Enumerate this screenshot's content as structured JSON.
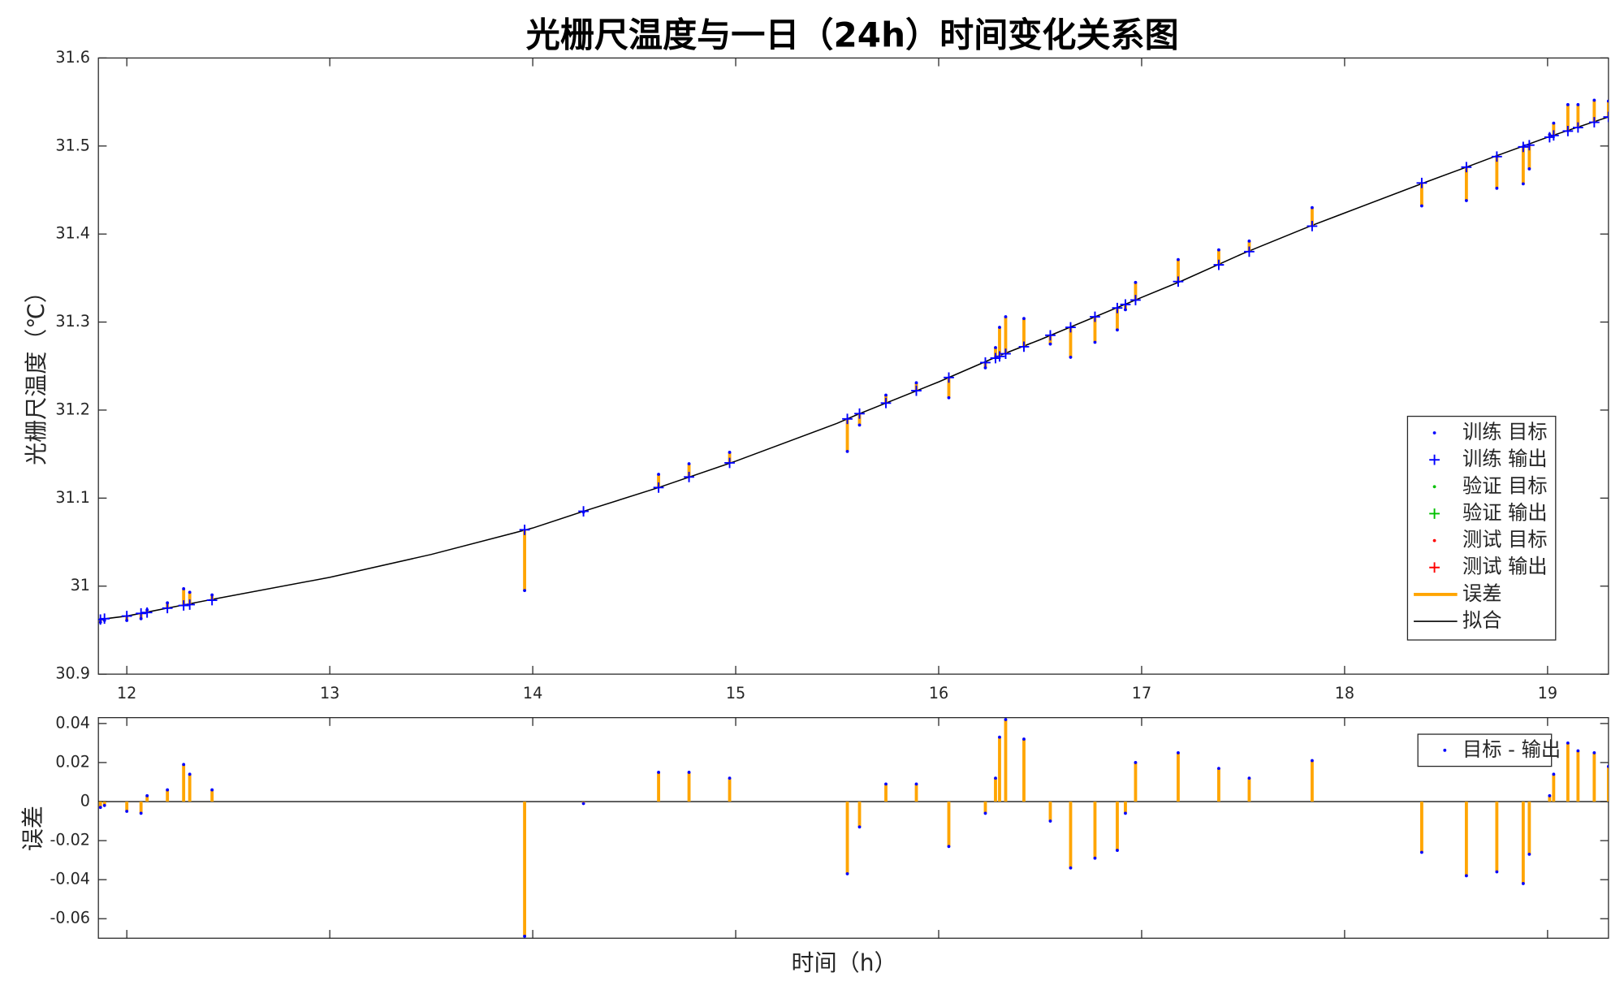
{
  "chart_data": [
    {
      "type": "line",
      "title": "光栅尺温度与一日（24h）时间变化关系图",
      "ylabel": "光栅尺温度（℃）",
      "xlim": [
        11.86,
        19.3
      ],
      "ylim": [
        30.9,
        31.6
      ],
      "xticks": [
        12,
        13,
        14,
        15,
        16,
        17,
        18,
        19
      ],
      "yticks": [
        30.9,
        31,
        31.1,
        31.2,
        31.3,
        31.4,
        31.5,
        31.6
      ],
      "x": [
        11.87,
        11.89,
        12.0,
        12.07,
        12.1,
        12.2,
        12.28,
        12.31,
        12.42,
        13.96,
        14.25,
        14.62,
        14.77,
        14.97,
        15.55,
        15.61,
        15.74,
        15.89,
        16.05,
        16.23,
        16.28,
        16.3,
        16.33,
        16.42,
        16.55,
        16.65,
        16.77,
        16.88,
        16.92,
        16.97,
        17.18,
        17.38,
        17.53,
        17.84,
        18.38,
        18.6,
        18.75,
        18.88,
        18.91,
        19.01,
        19.03,
        19.1,
        19.15,
        19.23,
        19.3
      ],
      "legend_position": "lower right",
      "series": [
        {
          "name": "训练 目标",
          "color": "#0000ff",
          "marker": "dot",
          "values": [
            30.959,
            30.961,
            30.961,
            30.963,
            30.973,
            30.981,
            30.997,
            30.993,
            30.99,
            30.995,
            31.084,
            31.127,
            31.139,
            31.152,
            31.153,
            31.183,
            31.217,
            31.231,
            31.214,
            31.248,
            31.271,
            31.294,
            31.306,
            31.304,
            31.275,
            31.26,
            31.277,
            31.291,
            31.314,
            31.345,
            31.371,
            31.382,
            31.392,
            31.43,
            31.432,
            31.438,
            31.452,
            31.457,
            31.474,
            31.513,
            31.526,
            31.547,
            31.547,
            31.552,
            31.551
          ]
        },
        {
          "name": "训练 输出",
          "color": "#0000ff",
          "marker": "plus",
          "values": [
            30.962,
            30.963,
            30.966,
            30.969,
            30.97,
            30.975,
            30.978,
            30.979,
            30.984,
            31.064,
            31.085,
            31.112,
            31.124,
            31.14,
            31.19,
            31.196,
            31.208,
            31.222,
            31.237,
            31.254,
            31.259,
            31.261,
            31.264,
            31.272,
            31.285,
            31.294,
            31.306,
            31.316,
            31.32,
            31.325,
            31.346,
            31.365,
            31.38,
            31.409,
            31.458,
            31.476,
            31.488,
            31.499,
            31.501,
            31.51,
            31.512,
            31.517,
            31.521,
            31.527,
            31.533
          ]
        },
        {
          "name": "验证 目标",
          "color": "#00c000",
          "marker": "dot"
        },
        {
          "name": "验证 输出",
          "color": "#00c000",
          "marker": "plus"
        },
        {
          "name": "测试 目标",
          "color": "#ff0000",
          "marker": "dot"
        },
        {
          "name": "测试 输出",
          "color": "#ff0000",
          "marker": "plus"
        },
        {
          "name": "误差",
          "color": "#ffa500",
          "marker": "errorbar"
        },
        {
          "name": "拟合",
          "color": "#000000",
          "marker": "line",
          "x": [
            11.86,
            12.0,
            12.4,
            13.0,
            13.5,
            14.0,
            14.25,
            14.62,
            15.0,
            15.5,
            15.6,
            16.0,
            16.3,
            16.5,
            17.0,
            17.2,
            17.5,
            17.83,
            18.4,
            18.6,
            18.75,
            19.0,
            19.3
          ],
          "values": [
            30.962,
            30.966,
            30.984,
            31.01,
            31.036,
            31.066,
            31.085,
            31.112,
            31.142,
            31.185,
            31.195,
            31.232,
            31.262,
            31.28,
            31.328,
            31.347,
            31.378,
            31.409,
            31.459,
            31.476,
            31.489,
            31.51,
            31.533
          ]
        }
      ]
    },
    {
      "type": "stem",
      "xlabel": "时间（h）",
      "ylabel": "误差",
      "xlim": [
        11.86,
        19.3
      ],
      "ylim": [
        -0.07,
        0.043
      ],
      "yticks": [
        -0.06,
        -0.04,
        -0.02,
        0,
        0.02,
        0.04
      ],
      "legend_position": "upper right",
      "x": [
        11.87,
        11.89,
        12.0,
        12.07,
        12.1,
        12.2,
        12.28,
        12.31,
        12.42,
        13.96,
        14.25,
        14.62,
        14.77,
        14.97,
        15.55,
        15.61,
        15.74,
        15.89,
        16.05,
        16.23,
        16.28,
        16.3,
        16.33,
        16.42,
        16.55,
        16.65,
        16.77,
        16.88,
        16.92,
        16.97,
        17.18,
        17.38,
        17.53,
        17.84,
        18.38,
        18.6,
        18.75,
        18.88,
        18.91,
        19.01,
        19.03,
        19.1,
        19.15,
        19.23,
        19.3
      ],
      "series": [
        {
          "name": "目标 - 输出",
          "color": "#0000ff",
          "stem_color": "#ffa500",
          "values": [
            -0.003,
            -0.002,
            -0.005,
            -0.006,
            0.003,
            0.006,
            0.019,
            0.014,
            0.006,
            -0.069,
            -0.001,
            0.015,
            0.015,
            0.012,
            -0.037,
            -0.013,
            0.009,
            0.009,
            -0.023,
            -0.006,
            0.012,
            0.033,
            0.042,
            0.032,
            -0.01,
            -0.034,
            -0.029,
            -0.025,
            -0.006,
            0.02,
            0.025,
            0.017,
            0.012,
            0.021,
            -0.026,
            -0.038,
            -0.036,
            -0.042,
            -0.027,
            0.003,
            0.014,
            0.03,
            0.026,
            0.025,
            0.018
          ]
        }
      ]
    }
  ]
}
